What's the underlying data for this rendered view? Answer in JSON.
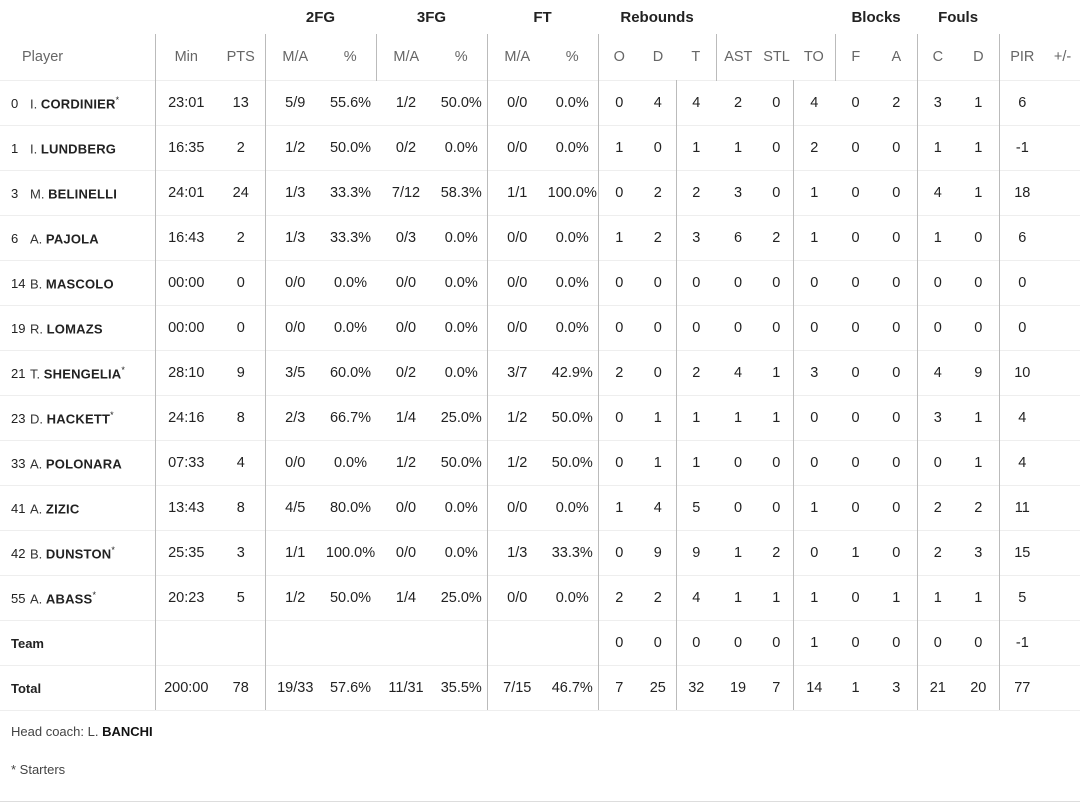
{
  "groups": {
    "fg2": "2FG",
    "fg3": "3FG",
    "ft": "FT",
    "reb": "Rebounds",
    "blk": "Blocks",
    "fouls": "Fouls"
  },
  "headers": {
    "player": "Player",
    "min": "Min",
    "pts": "PTS",
    "ma": "M/A",
    "pct": "%",
    "o": "O",
    "d": "D",
    "t": "T",
    "ast": "AST",
    "stl": "STL",
    "to": "TO",
    "f": "F",
    "a": "A",
    "c": "C",
    "fd": "D",
    "pir": "PIR",
    "pm": "+/-"
  },
  "players": [
    {
      "no": "0",
      "first": "I.",
      "last": "CORDINIER",
      "starter": "*",
      "s": [
        "23:01",
        "13",
        "5/9",
        "55.6%",
        "1/2",
        "50.0%",
        "0/0",
        "0.0%",
        "0",
        "4",
        "4",
        "2",
        "0",
        "4",
        "0",
        "2",
        "3",
        "1",
        "6",
        ""
      ]
    },
    {
      "no": "1",
      "first": "I.",
      "last": "LUNDBERG",
      "starter": "",
      "s": [
        "16:35",
        "2",
        "1/2",
        "50.0%",
        "0/2",
        "0.0%",
        "0/0",
        "0.0%",
        "1",
        "0",
        "1",
        "1",
        "0",
        "2",
        "0",
        "0",
        "1",
        "1",
        "-1",
        ""
      ]
    },
    {
      "no": "3",
      "first": "M.",
      "last": "BELINELLI",
      "starter": "",
      "s": [
        "24:01",
        "24",
        "1/3",
        "33.3%",
        "7/12",
        "58.3%",
        "1/1",
        "100.0%",
        "0",
        "2",
        "2",
        "3",
        "0",
        "1",
        "0",
        "0",
        "4",
        "1",
        "18",
        ""
      ]
    },
    {
      "no": "6",
      "first": "A.",
      "last": "PAJOLA",
      "starter": "",
      "s": [
        "16:43",
        "2",
        "1/3",
        "33.3%",
        "0/3",
        "0.0%",
        "0/0",
        "0.0%",
        "1",
        "2",
        "3",
        "6",
        "2",
        "1",
        "0",
        "0",
        "1",
        "0",
        "6",
        ""
      ]
    },
    {
      "no": "14",
      "first": "B.",
      "last": "MASCOLO",
      "starter": "",
      "s": [
        "00:00",
        "0",
        "0/0",
        "0.0%",
        "0/0",
        "0.0%",
        "0/0",
        "0.0%",
        "0",
        "0",
        "0",
        "0",
        "0",
        "0",
        "0",
        "0",
        "0",
        "0",
        "0",
        ""
      ]
    },
    {
      "no": "19",
      "first": "R.",
      "last": "LOMAZS",
      "starter": "",
      "s": [
        "00:00",
        "0",
        "0/0",
        "0.0%",
        "0/0",
        "0.0%",
        "0/0",
        "0.0%",
        "0",
        "0",
        "0",
        "0",
        "0",
        "0",
        "0",
        "0",
        "0",
        "0",
        "0",
        ""
      ]
    },
    {
      "no": "21",
      "first": "T.",
      "last": "SHENGELIA",
      "starter": "*",
      "s": [
        "28:10",
        "9",
        "3/5",
        "60.0%",
        "0/2",
        "0.0%",
        "3/7",
        "42.9%",
        "2",
        "0",
        "2",
        "4",
        "1",
        "3",
        "0",
        "0",
        "4",
        "9",
        "10",
        ""
      ]
    },
    {
      "no": "23",
      "first": "D.",
      "last": "HACKETT",
      "starter": "*",
      "s": [
        "24:16",
        "8",
        "2/3",
        "66.7%",
        "1/4",
        "25.0%",
        "1/2",
        "50.0%",
        "0",
        "1",
        "1",
        "1",
        "1",
        "0",
        "0",
        "0",
        "3",
        "1",
        "4",
        ""
      ]
    },
    {
      "no": "33",
      "first": "A.",
      "last": "POLONARA",
      "starter": "",
      "s": [
        "07:33",
        "4",
        "0/0",
        "0.0%",
        "1/2",
        "50.0%",
        "1/2",
        "50.0%",
        "0",
        "1",
        "1",
        "0",
        "0",
        "0",
        "0",
        "0",
        "0",
        "1",
        "4",
        ""
      ]
    },
    {
      "no": "41",
      "first": "A.",
      "last": "ZIZIC",
      "starter": "",
      "s": [
        "13:43",
        "8",
        "4/5",
        "80.0%",
        "0/0",
        "0.0%",
        "0/0",
        "0.0%",
        "1",
        "4",
        "5",
        "0",
        "0",
        "1",
        "0",
        "0",
        "2",
        "2",
        "11",
        ""
      ]
    },
    {
      "no": "42",
      "first": "B.",
      "last": "DUNSTON",
      "starter": "*",
      "s": [
        "25:35",
        "3",
        "1/1",
        "100.0%",
        "0/0",
        "0.0%",
        "1/3",
        "33.3%",
        "0",
        "9",
        "9",
        "1",
        "2",
        "0",
        "1",
        "0",
        "2",
        "3",
        "15",
        ""
      ]
    },
    {
      "no": "55",
      "first": "A.",
      "last": "ABASS",
      "starter": "*",
      "s": [
        "20:23",
        "5",
        "1/2",
        "50.0%",
        "1/4",
        "25.0%",
        "0/0",
        "0.0%",
        "2",
        "2",
        "4",
        "1",
        "1",
        "1",
        "0",
        "1",
        "1",
        "1",
        "5",
        ""
      ]
    }
  ],
  "team": {
    "label": "Team",
    "s": [
      "",
      "",
      "",
      "",
      "",
      "",
      "",
      "",
      "0",
      "0",
      "0",
      "0",
      "0",
      "1",
      "0",
      "0",
      "0",
      "0",
      "-1",
      ""
    ]
  },
  "total": {
    "label": "Total",
    "s": [
      "200:00",
      "78",
      "19/33",
      "57.6%",
      "11/31",
      "35.5%",
      "7/15",
      "46.7%",
      "7",
      "25",
      "32",
      "19",
      "7",
      "14",
      "1",
      "3",
      "21",
      "20",
      "77",
      ""
    ]
  },
  "footer": {
    "coach_label": "Head coach: L.",
    "coach_name": "BANCHI",
    "starters_note": "* Starters"
  }
}
